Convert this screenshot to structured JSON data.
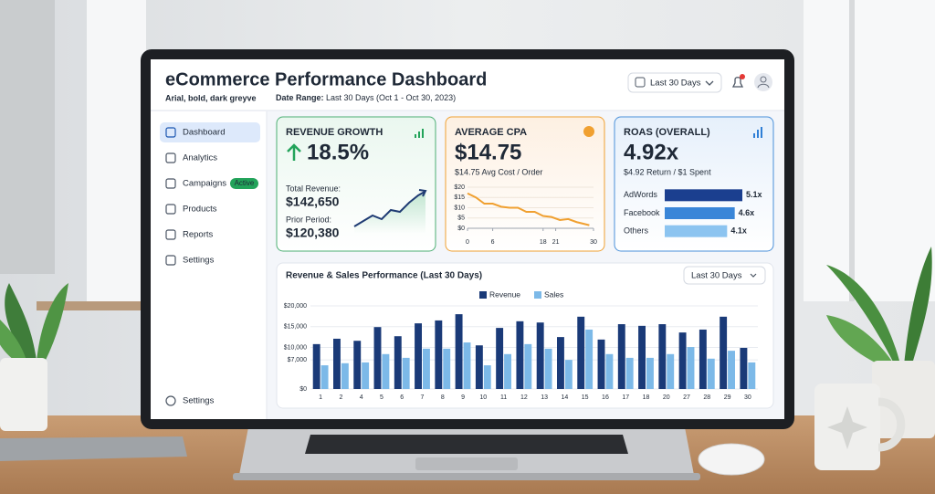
{
  "header": {
    "title": "eCommerce Performance Dashboard",
    "subtitle": "Arial, bold, dark greyve",
    "date_range_label": "Date Range:",
    "date_range": "Last 30 Days (Oct 1 - Oct 30, 2023)",
    "period": "Last 30 Days"
  },
  "sidebar": {
    "items": [
      "Dashboard",
      "Analytics",
      "Campaigns",
      "Products",
      "Reports",
      "Settings"
    ],
    "badge": "Active",
    "footer": "Settings"
  },
  "cards": [
    {
      "title": "REVENUE GROWTH",
      "value": "18.5%",
      "total_label": "Total Revenue:",
      "total": "$142,650",
      "prior_label": "Prior Period:",
      "prior": "$120,380"
    },
    {
      "title": "AVERAGE CPA",
      "value": "$14.75",
      "caption": "$14.75 Avg Cost / Order"
    },
    {
      "title": "ROAS (OVERALL)",
      "value": "4.92x",
      "caption": "$4.92 Return / $1 Spent"
    }
  ],
  "panel_period": "Last 30 Days",
  "chart_data": [
    {
      "type": "line",
      "color": "#f0a030",
      "x": [
        0,
        2,
        4,
        6,
        8,
        10,
        12,
        14,
        16,
        18,
        20,
        22,
        24,
        26,
        29
      ],
      "values": [
        17,
        15,
        12,
        12,
        10.5,
        10,
        10,
        8,
        8,
        6,
        5.5,
        4,
        4.5,
        3,
        1.5
      ],
      "xlim": [
        0,
        30
      ],
      "xticks": [
        0,
        6,
        18,
        21,
        30
      ],
      "ylim": [
        0,
        20
      ],
      "yticks": [
        {
          "value": 0,
          "label": "$0"
        },
        {
          "value": 5,
          "label": "$5"
        },
        {
          "value": 10,
          "label": "$10"
        },
        {
          "value": 15,
          "label": "$15"
        },
        {
          "value": 20,
          "label": "$20"
        }
      ],
      "grid": true
    },
    {
      "type": "bar",
      "orientation": "horizontal",
      "categories": [
        "AdWords",
        "Facebook",
        "Others"
      ],
      "values": [
        5.1,
        4.6,
        4.1
      ],
      "value_labels": [
        "5.1x",
        "4.6x",
        "4.1x"
      ],
      "colors": [
        "#1b3f8f",
        "#3a86d8",
        "#8cc4f0"
      ]
    },
    {
      "type": "bar",
      "title": "Revenue & Sales Performance (Last 30 Days)",
      "categories": [
        "1",
        "2",
        "4",
        "5",
        "6",
        "7",
        "8",
        "9",
        "10",
        "11",
        "12",
        "13",
        "14",
        "15",
        "16",
        "17",
        "18",
        "20",
        "27",
        "28",
        "29",
        "30"
      ],
      "series": [
        {
          "name": "Revenue",
          "color": "#1a3a78",
          "values": [
            10800,
            12100,
            11600,
            14900,
            12700,
            15800,
            16500,
            18000,
            10500,
            14700,
            16300,
            16000,
            12500,
            17400,
            11900,
            15600,
            15200,
            15600,
            13600,
            14300,
            17400,
            9900
          ]
        },
        {
          "name": "Sales",
          "color": "#7cb9e8",
          "values": [
            5700,
            6200,
            6400,
            8400,
            7500,
            9700,
            9700,
            11200,
            5700,
            8400,
            10800,
            9700,
            7000,
            14300,
            8400,
            7500,
            7500,
            8400,
            10100,
            7300,
            9200,
            6400
          ]
        }
      ],
      "ylim": [
        0,
        20000
      ],
      "yticks": [
        {
          "value": 0,
          "label": "$0"
        },
        {
          "value": 7000,
          "label": "$7,000"
        },
        {
          "value": 10000,
          "label": "$10,000"
        },
        {
          "value": 15000,
          "label": "$15,000"
        },
        {
          "value": 20000,
          "label": "$20,000"
        }
      ],
      "grid": true,
      "legend": "top"
    }
  ]
}
